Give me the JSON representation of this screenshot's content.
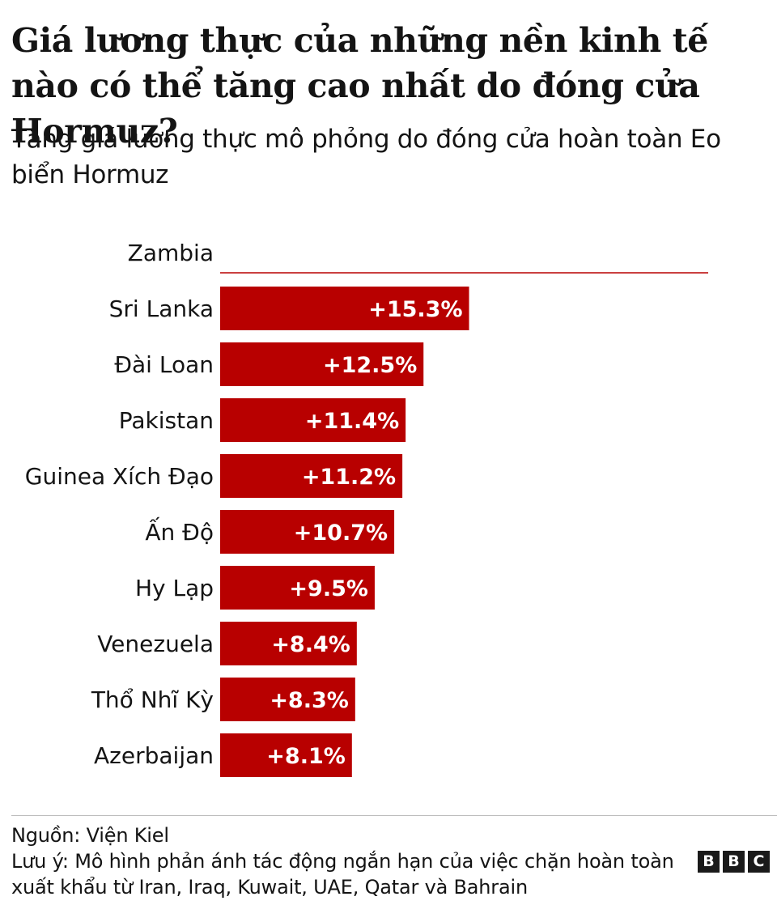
{
  "title": "Giá lương thực của những nền kinh tế nào có thể tăng cao nhất do đóng cửa Hormuz?",
  "subtitle": "Tăng giá lương thực mô phỏng do đóng cửa hoàn toàn Eo biển Hormuz",
  "footer": {
    "source": "Nguồn: Viện Kiel",
    "note": "Lưu ý: Mô hình phản ánh tác động ngắn hạn của việc chặn hoàn toàn xuất khẩu từ Iran, Iraq, Kuwait, UAE, Qatar và Bahrain"
  },
  "logo": {
    "letters": [
      "B",
      "B",
      "C"
    ]
  },
  "colors": {
    "bar": "#b80000",
    "zero_line": "#b80000",
    "text": "#141414"
  },
  "chart_data": {
    "type": "bar",
    "orientation": "horizontal",
    "categories": [
      "Zambia",
      "Sri Lanka",
      "Đài Loan",
      "Pakistan",
      "Guinea Xích Đạo",
      "Ấn Độ",
      "Hy Lạp",
      "Venezuela",
      "Thổ Nhĩ Kỳ",
      "Azerbaijan"
    ],
    "values": [
      null,
      15.3,
      12.5,
      11.4,
      11.2,
      10.7,
      9.5,
      8.4,
      8.3,
      8.1
    ],
    "data_labels": [
      "",
      "+15.3%",
      "+12.5%",
      "+11.4%",
      "+11.2%",
      "+10.7%",
      "+9.5%",
      "+8.4%",
      "+8.3%",
      "+8.1%"
    ],
    "xlim": [
      0,
      30
    ],
    "grid": false,
    "legend": "none"
  }
}
